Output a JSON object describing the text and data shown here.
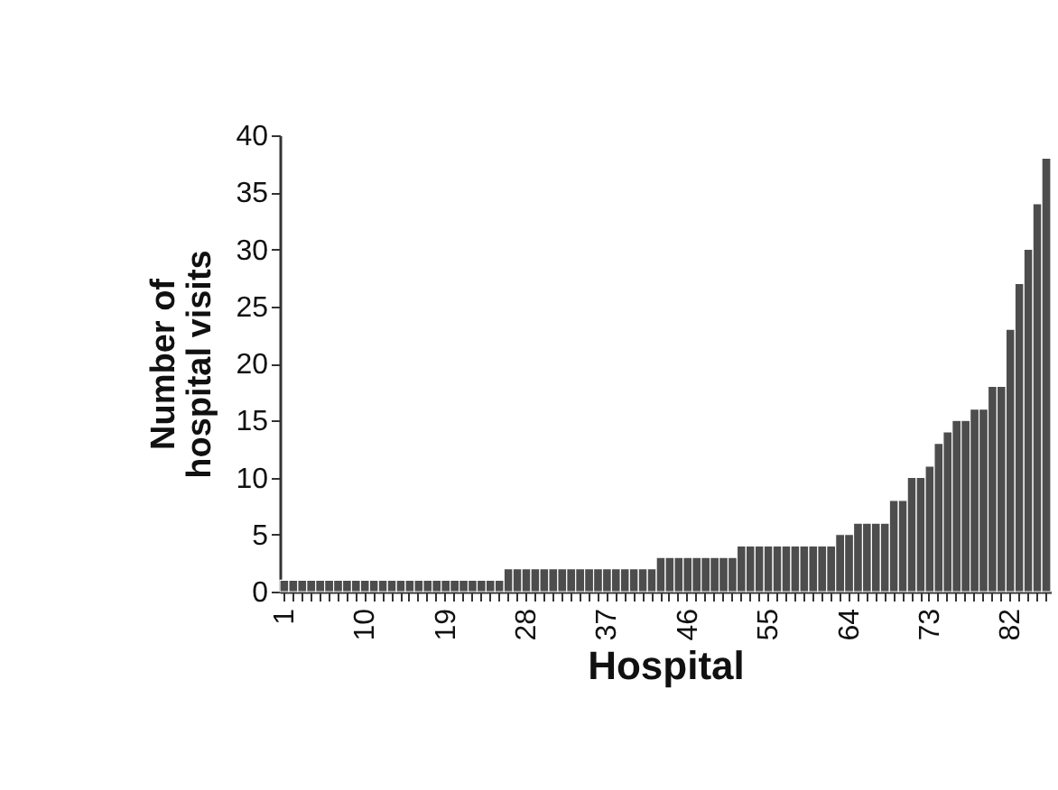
{
  "chart_data": {
    "type": "bar",
    "xlabel": "Hospital",
    "ylabel": "Number of\nhospital visits",
    "categories": [
      "1",
      null,
      null,
      null,
      null,
      null,
      null,
      null,
      null,
      "10",
      null,
      null,
      null,
      null,
      null,
      null,
      null,
      null,
      "19",
      null,
      null,
      null,
      null,
      null,
      null,
      null,
      null,
      "28",
      null,
      null,
      null,
      null,
      null,
      null,
      null,
      null,
      "37",
      null,
      null,
      null,
      null,
      null,
      null,
      null,
      null,
      "46",
      null,
      null,
      null,
      null,
      null,
      null,
      null,
      null,
      "55",
      null,
      null,
      null,
      null,
      null,
      null,
      null,
      null,
      "64",
      null,
      null,
      null,
      null,
      null,
      null,
      null,
      null,
      "73",
      null,
      null,
      null,
      null,
      null,
      null,
      null,
      null,
      "82",
      null,
      null,
      null,
      null
    ],
    "values": [
      1,
      1,
      1,
      1,
      1,
      1,
      1,
      1,
      1,
      1,
      1,
      1,
      1,
      1,
      1,
      1,
      1,
      1,
      1,
      1,
      1,
      1,
      1,
      1,
      1,
      2,
      2,
      2,
      2,
      2,
      2,
      2,
      2,
      2,
      2,
      2,
      2,
      2,
      2,
      2,
      2,
      2,
      3,
      3,
      3,
      3,
      3,
      3,
      3,
      3,
      3,
      4,
      4,
      4,
      4,
      4,
      4,
      4,
      4,
      4,
      4,
      4,
      5,
      5,
      6,
      6,
      6,
      6,
      8,
      8,
      10,
      10,
      11,
      13,
      14,
      15,
      15,
      16,
      16,
      18,
      18,
      23,
      27,
      30,
      34,
      38
    ],
    "color": "#4d4d4d",
    "ylim": [
      0,
      40
    ],
    "yticks": [
      0,
      5,
      10,
      15,
      20,
      25,
      30,
      35,
      40
    ],
    "grid": false
  }
}
